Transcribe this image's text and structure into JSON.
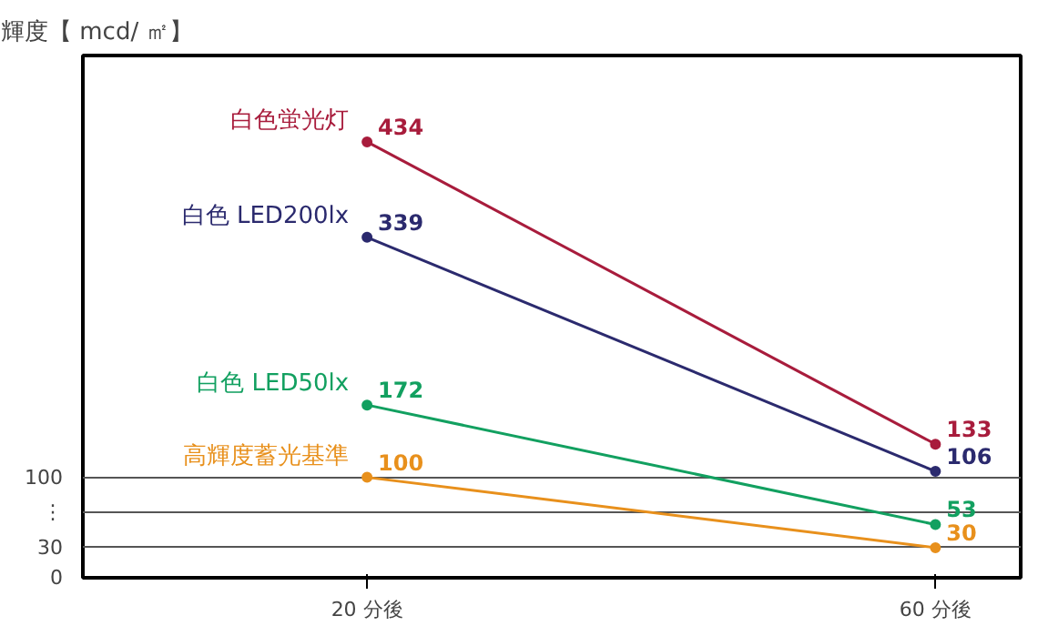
{
  "chart_data": {
    "type": "line",
    "ylabel": "輝度【 mcd/ ㎡】",
    "x": [
      20,
      60
    ],
    "xlim": [
      0,
      66
    ],
    "xticks": [
      {
        "value": 20,
        "label": "20 分後"
      },
      {
        "value": 60,
        "label": "60 分後"
      }
    ],
    "ylim": [
      0,
      520
    ],
    "yticks": [
      0,
      30,
      {
        "value": 65,
        "label": "⋮"
      },
      100
    ],
    "grid": "y",
    "marker": "circle",
    "data_labels": true,
    "series": [
      {
        "name": "白色蛍光灯",
        "color": "#a81c3c",
        "values": [
          434,
          133
        ]
      },
      {
        "name": "白色 LED200lx",
        "color": "#2b2a6e",
        "values": [
          339,
          106
        ]
      },
      {
        "name": "白色 LED50lx",
        "color": "#12a060",
        "values": [
          172,
          53
        ]
      },
      {
        "name": "高輝度蓄光基準",
        "color": "#e8901c",
        "values": [
          100,
          30
        ]
      }
    ]
  }
}
